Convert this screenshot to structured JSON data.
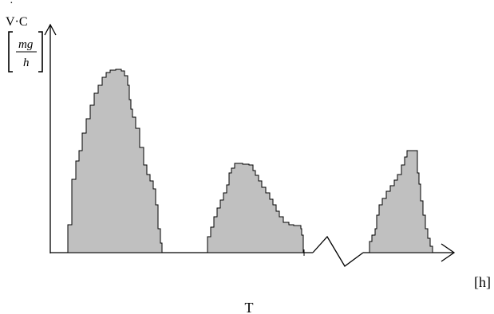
{
  "chart_data": {
    "type": "area",
    "y_label_top": "V·C",
    "y_unit_numerator": "mg",
    "y_unit_denominator": "h",
    "x_unit": "[h]",
    "x_label": "T",
    "axis_break": true,
    "grid": false,
    "fill_color": "#c0c0c0",
    "stroke_color": "#000000",
    "series": [
      {
        "values": [
          [
            78,
            0
          ],
          [
            85,
            35
          ],
          [
            90,
            92
          ],
          [
            95,
            115
          ],
          [
            99,
            128
          ],
          [
            103,
            150
          ],
          [
            108,
            168
          ],
          [
            113,
            185
          ],
          [
            118,
            200
          ],
          [
            123,
            210
          ],
          [
            128,
            220
          ],
          [
            133,
            226
          ],
          [
            138,
            229
          ],
          [
            145,
            230
          ],
          [
            152,
            228
          ],
          [
            156,
            222
          ],
          [
            160,
            210
          ],
          [
            162,
            192
          ],
          [
            164,
            180
          ],
          [
            166,
            170
          ],
          [
            170,
            156
          ],
          [
            175,
            132
          ],
          [
            180,
            110
          ],
          [
            184,
            98
          ],
          [
            188,
            90
          ],
          [
            192,
            80
          ],
          [
            195,
            60
          ],
          [
            198,
            30
          ],
          [
            201,
            12
          ],
          [
            203,
            0
          ]
        ]
      },
      {
        "values": [
          [
            258,
            0
          ],
          [
            260,
            20
          ],
          [
            264,
            32
          ],
          [
            268,
            45
          ],
          [
            272,
            56
          ],
          [
            276,
            66
          ],
          [
            280,
            75
          ],
          [
            284,
            85
          ],
          [
            287,
            100
          ],
          [
            290,
            106
          ],
          [
            294,
            112
          ],
          [
            299,
            112
          ],
          [
            304,
            111
          ],
          [
            312,
            110
          ],
          [
            317,
            103
          ],
          [
            320,
            97
          ],
          [
            324,
            90
          ],
          [
            328,
            82
          ],
          [
            333,
            75
          ],
          [
            338,
            67
          ],
          [
            342,
            60
          ],
          [
            346,
            52
          ],
          [
            350,
            45
          ],
          [
            355,
            38
          ],
          [
            362,
            35
          ],
          [
            368,
            34
          ],
          [
            375,
            34
          ],
          [
            377,
            30
          ],
          [
            378,
            22
          ],
          [
            380,
            0
          ]
        ]
      },
      {
        "values": [
          [
            460,
            0
          ],
          [
            463,
            14
          ],
          [
            466,
            22
          ],
          [
            470,
            30
          ],
          [
            472,
            47
          ],
          [
            475,
            60
          ],
          [
            479,
            68
          ],
          [
            484,
            77
          ],
          [
            489,
            84
          ],
          [
            494,
            91
          ],
          [
            498,
            98
          ],
          [
            503,
            110
          ],
          [
            507,
            120
          ],
          [
            510,
            128
          ],
          [
            514,
            128
          ],
          [
            519,
            128
          ],
          [
            522,
            128
          ],
          [
            523,
            100
          ],
          [
            525,
            86
          ],
          [
            527,
            65
          ],
          [
            530,
            47
          ],
          [
            533,
            30
          ],
          [
            536,
            18
          ],
          [
            539,
            8
          ],
          [
            542,
            0
          ]
        ]
      }
    ]
  }
}
